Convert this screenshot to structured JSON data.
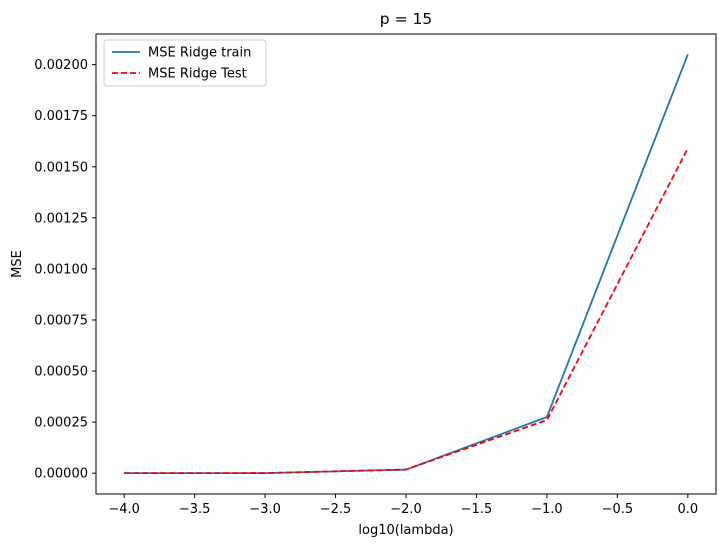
{
  "chart_data": {
    "type": "line",
    "title": "p = 15",
    "xlabel": "log10(lambda)",
    "ylabel": "MSE",
    "x": [
      -4.0,
      -3.0,
      -2.0,
      -1.0,
      0.0
    ],
    "xlim": [
      -4.2,
      0.2
    ],
    "ylim": [
      -0.000102,
      0.00215
    ],
    "xticks": [
      -4.0,
      -3.5,
      -3.0,
      -2.5,
      -2.0,
      -1.5,
      -1.0,
      -0.5,
      0.0
    ],
    "xtick_labels": [
      "−4.0",
      "−3.5",
      "−3.0",
      "−2.5",
      "−2.0",
      "−1.5",
      "−1.0",
      "−0.5",
      "0.0"
    ],
    "yticks": [
      0.0,
      0.00025,
      0.0005,
      0.00075,
      0.001,
      0.00125,
      0.0015,
      0.00175,
      0.002
    ],
    "ytick_labels": [
      "0.00000",
      "0.00025",
      "0.00050",
      "0.00075",
      "0.00100",
      "0.00125",
      "0.00150",
      "0.00175",
      "0.00200"
    ],
    "grid": false,
    "legend_position": "top-left",
    "series": [
      {
        "name": "MSE Ridge train",
        "color": "#1f77b4",
        "style": "solid",
        "values": [
          1e-07,
          3e-07,
          1.7e-05,
          0.000275,
          0.00205
        ]
      },
      {
        "name": "MSE Ridge Test",
        "color": "#ff0000",
        "style": "dashed",
        "values": [
          1e-07,
          4e-07,
          1.8e-05,
          0.00026,
          0.00159
        ]
      }
    ]
  }
}
